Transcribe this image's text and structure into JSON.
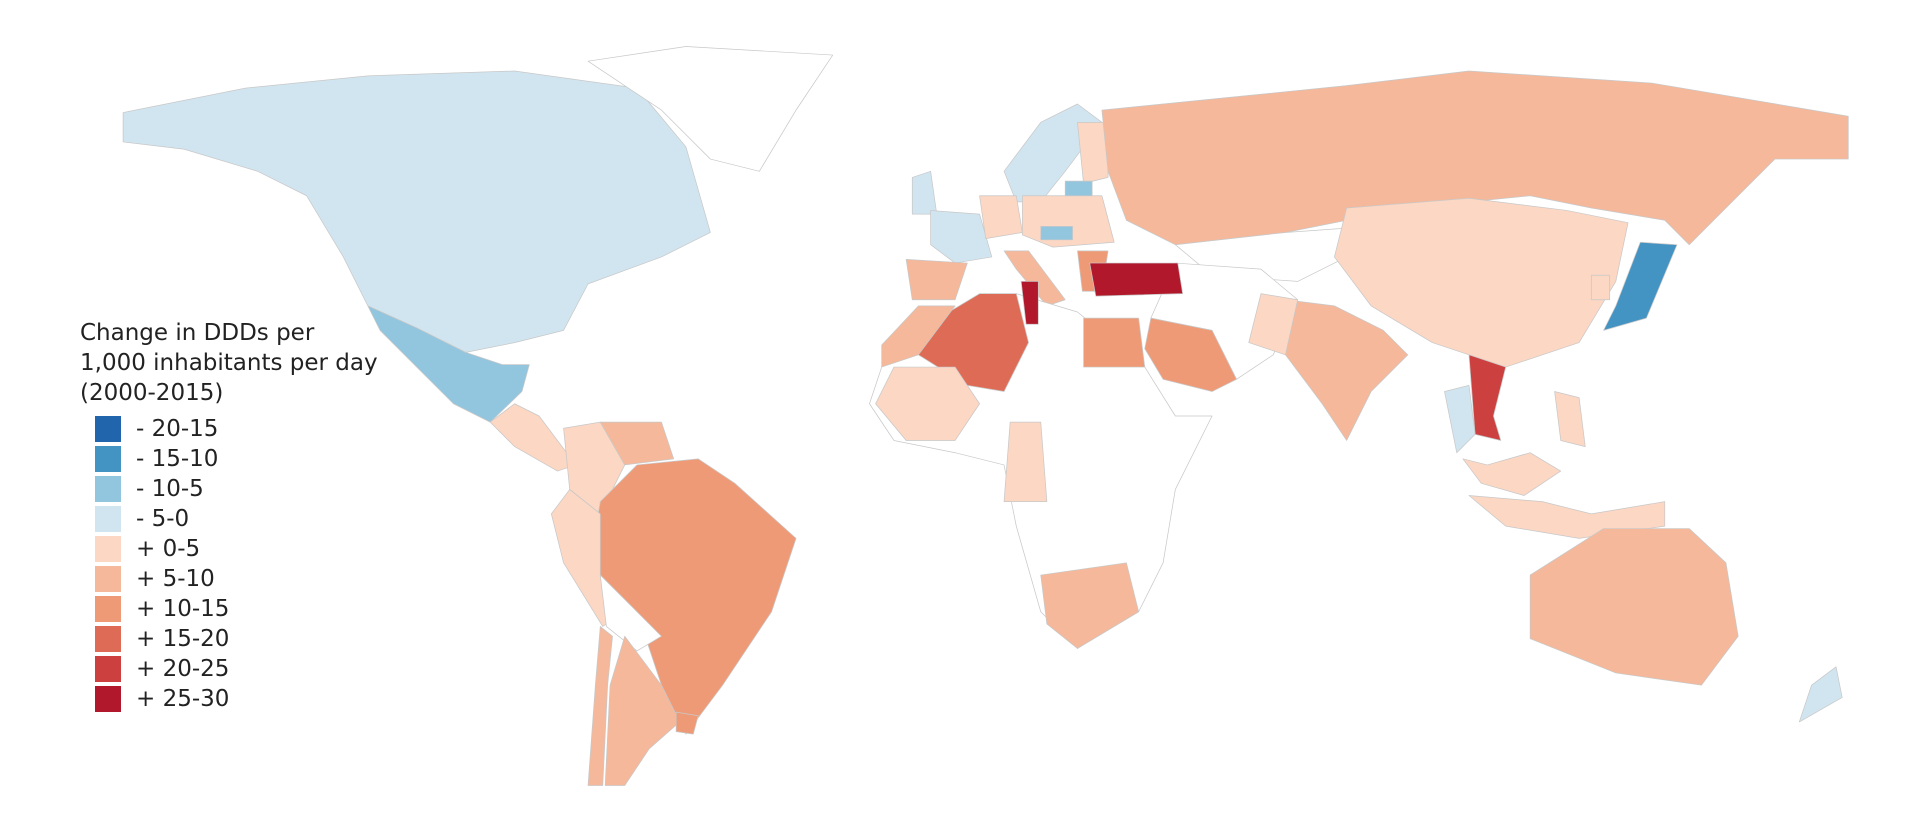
{
  "legend": {
    "title": "Change in DDDs per 1,000 inhabitants per day (2000-2015)",
    "bins": [
      {
        "label": "- 20-15",
        "color": "#2166ac"
      },
      {
        "label": "- 15-10",
        "color": "#4393c3"
      },
      {
        "label": "- 10-5",
        "color": "#92c5de"
      },
      {
        "label": "- 5-0",
        "color": "#d1e5f0"
      },
      {
        "label": "+ 0-5",
        "color": "#fbd7c4"
      },
      {
        "label": "+ 5-10",
        "color": "#f5b89a"
      },
      {
        "label": "+ 10-15",
        "color": "#ef9a76"
      },
      {
        "label": "+ 15-20",
        "color": "#de6b55"
      },
      {
        "label": "+ 20-25",
        "color": "#cc4040"
      },
      {
        "label": "+ 25-30",
        "color": "#b2182b"
      }
    ]
  },
  "no_data_color": "#ffffff",
  "border_color": "#c8c8c8",
  "regions": [
    {
      "id": "canada-usa",
      "bin": 3
    },
    {
      "id": "greenland",
      "bin": null
    },
    {
      "id": "mexico",
      "bin": 2
    },
    {
      "id": "central-america",
      "bin": 4
    },
    {
      "id": "colombia",
      "bin": 4
    },
    {
      "id": "venezuela",
      "bin": 5
    },
    {
      "id": "brazil",
      "bin": 6
    },
    {
      "id": "peru",
      "bin": 4
    },
    {
      "id": "bolivia",
      "bin": null
    },
    {
      "id": "argentina",
      "bin": 5
    },
    {
      "id": "chile",
      "bin": 5
    },
    {
      "id": "uruguay",
      "bin": 6
    },
    {
      "id": "uk",
      "bin": 3
    },
    {
      "id": "france",
      "bin": 3
    },
    {
      "id": "spain-portugal",
      "bin": 5
    },
    {
      "id": "norway-sweden",
      "bin": 3
    },
    {
      "id": "finland",
      "bin": 4
    },
    {
      "id": "germany",
      "bin": 4
    },
    {
      "id": "central-europe",
      "bin": 4
    },
    {
      "id": "lithuania",
      "bin": 2
    },
    {
      "id": "hungary",
      "bin": 2
    },
    {
      "id": "italy",
      "bin": 5
    },
    {
      "id": "greece-bulgaria",
      "bin": 6
    },
    {
      "id": "russia",
      "bin": 5
    },
    {
      "id": "kazakhstan",
      "bin": null
    },
    {
      "id": "middle-east",
      "bin": null
    },
    {
      "id": "africa",
      "bin": null
    },
    {
      "id": "china",
      "bin": 4
    },
    {
      "id": "india",
      "bin": 5
    },
    {
      "id": "pakistan",
      "bin": 4
    },
    {
      "id": "turkey",
      "bin": 9
    },
    {
      "id": "algeria",
      "bin": 7
    },
    {
      "id": "tunisia",
      "bin": 9
    },
    {
      "id": "morocco",
      "bin": 5
    },
    {
      "id": "egypt",
      "bin": 6
    },
    {
      "id": "saudi-arabia",
      "bin": 6
    },
    {
      "id": "west-africa",
      "bin": 4
    },
    {
      "id": "east-africa",
      "bin": 4
    },
    {
      "id": "south-africa",
      "bin": 5
    },
    {
      "id": "vietnam",
      "bin": 8
    },
    {
      "id": "thailand",
      "bin": 3
    },
    {
      "id": "japan",
      "bin": 1
    },
    {
      "id": "korea",
      "bin": 4
    },
    {
      "id": "malaysia",
      "bin": 4
    },
    {
      "id": "indonesia",
      "bin": 4
    },
    {
      "id": "philippines",
      "bin": 4
    },
    {
      "id": "australia",
      "bin": 5
    },
    {
      "id": "new-zealand",
      "bin": 3
    }
  ]
}
